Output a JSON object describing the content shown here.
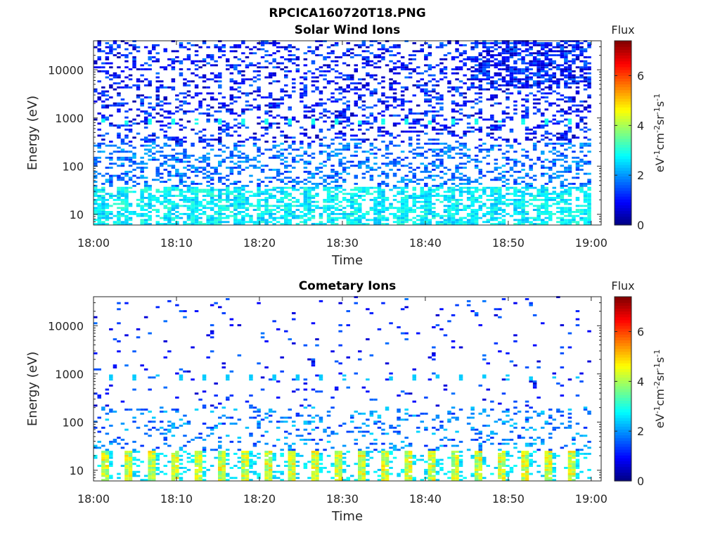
{
  "figure_title": "RPCICA160720T18.PNG",
  "chart_data": [
    {
      "type": "heatmap",
      "title": "Solar Wind Ions",
      "xlabel": "Time",
      "ylabel": "Energy (eV)",
      "x_ticks": [
        "18:00",
        "18:10",
        "18:20",
        "18:30",
        "18:40",
        "18:50",
        "19:00"
      ],
      "x_range": [
        "18:00",
        "19:00"
      ],
      "y_ticks": [
        10,
        100,
        1000,
        10000
      ],
      "y_tick_labels": [
        "10",
        "100",
        "1000",
        "10000"
      ],
      "y_range": [
        6,
        40000
      ],
      "y_scale": "log",
      "colorbar": {
        "title": "Flux",
        "label_parts": [
          "eV",
          "-1",
          "cm",
          "-2",
          "sr",
          "-1",
          "s",
          "-1"
        ],
        "range": [
          0,
          7.4
        ],
        "ticks": [
          0,
          2,
          4,
          6
        ],
        "colormap": "jet"
      },
      "description_bands": [
        {
          "energy_range_eV": [
            6,
            35
          ],
          "flux_range": [
            2.2,
            3.2
          ]
        },
        {
          "energy_range_eV": [
            35,
            300
          ],
          "flux_range": [
            1.2,
            2.3
          ]
        },
        {
          "energy_range_eV": [
            300,
            40000
          ],
          "flux_range": [
            0.3,
            1.8
          ]
        },
        {
          "energy_eV": 800,
          "flux_range": [
            2.8,
            3.0
          ],
          "note": "periodic bright bins"
        }
      ]
    },
    {
      "type": "heatmap",
      "title": "Cometary Ions",
      "xlabel": "Time",
      "ylabel": "Energy (eV)",
      "x_ticks": [
        "18:00",
        "18:10",
        "18:20",
        "18:30",
        "18:40",
        "18:50",
        "19:00"
      ],
      "x_range": [
        "18:00",
        "19:00"
      ],
      "y_ticks": [
        10,
        100,
        1000,
        10000
      ],
      "y_tick_labels": [
        "10",
        "100",
        "1000",
        "10000"
      ],
      "y_range": [
        6,
        40000
      ],
      "y_scale": "log",
      "colorbar": {
        "title": "Flux",
        "label_parts": [
          "eV",
          "-1",
          "cm",
          "-2",
          "sr",
          "-1",
          "s",
          "-1"
        ],
        "range": [
          0,
          7.4
        ],
        "ticks": [
          0,
          2,
          4,
          6
        ],
        "colormap": "jet"
      },
      "description_bands": [
        {
          "energy_range_eV": [
            6,
            25
          ],
          "flux_range": [
            2.5,
            5.0
          ],
          "note": "periodic columns every ~3 min"
        },
        {
          "energy_range_eV": [
            25,
            200
          ],
          "flux_range": [
            1.2,
            2.5
          ]
        },
        {
          "energy_range_eV": [
            200,
            40000
          ],
          "flux_range": [
            0.5,
            1.8
          ],
          "note": "sparse"
        }
      ]
    }
  ]
}
